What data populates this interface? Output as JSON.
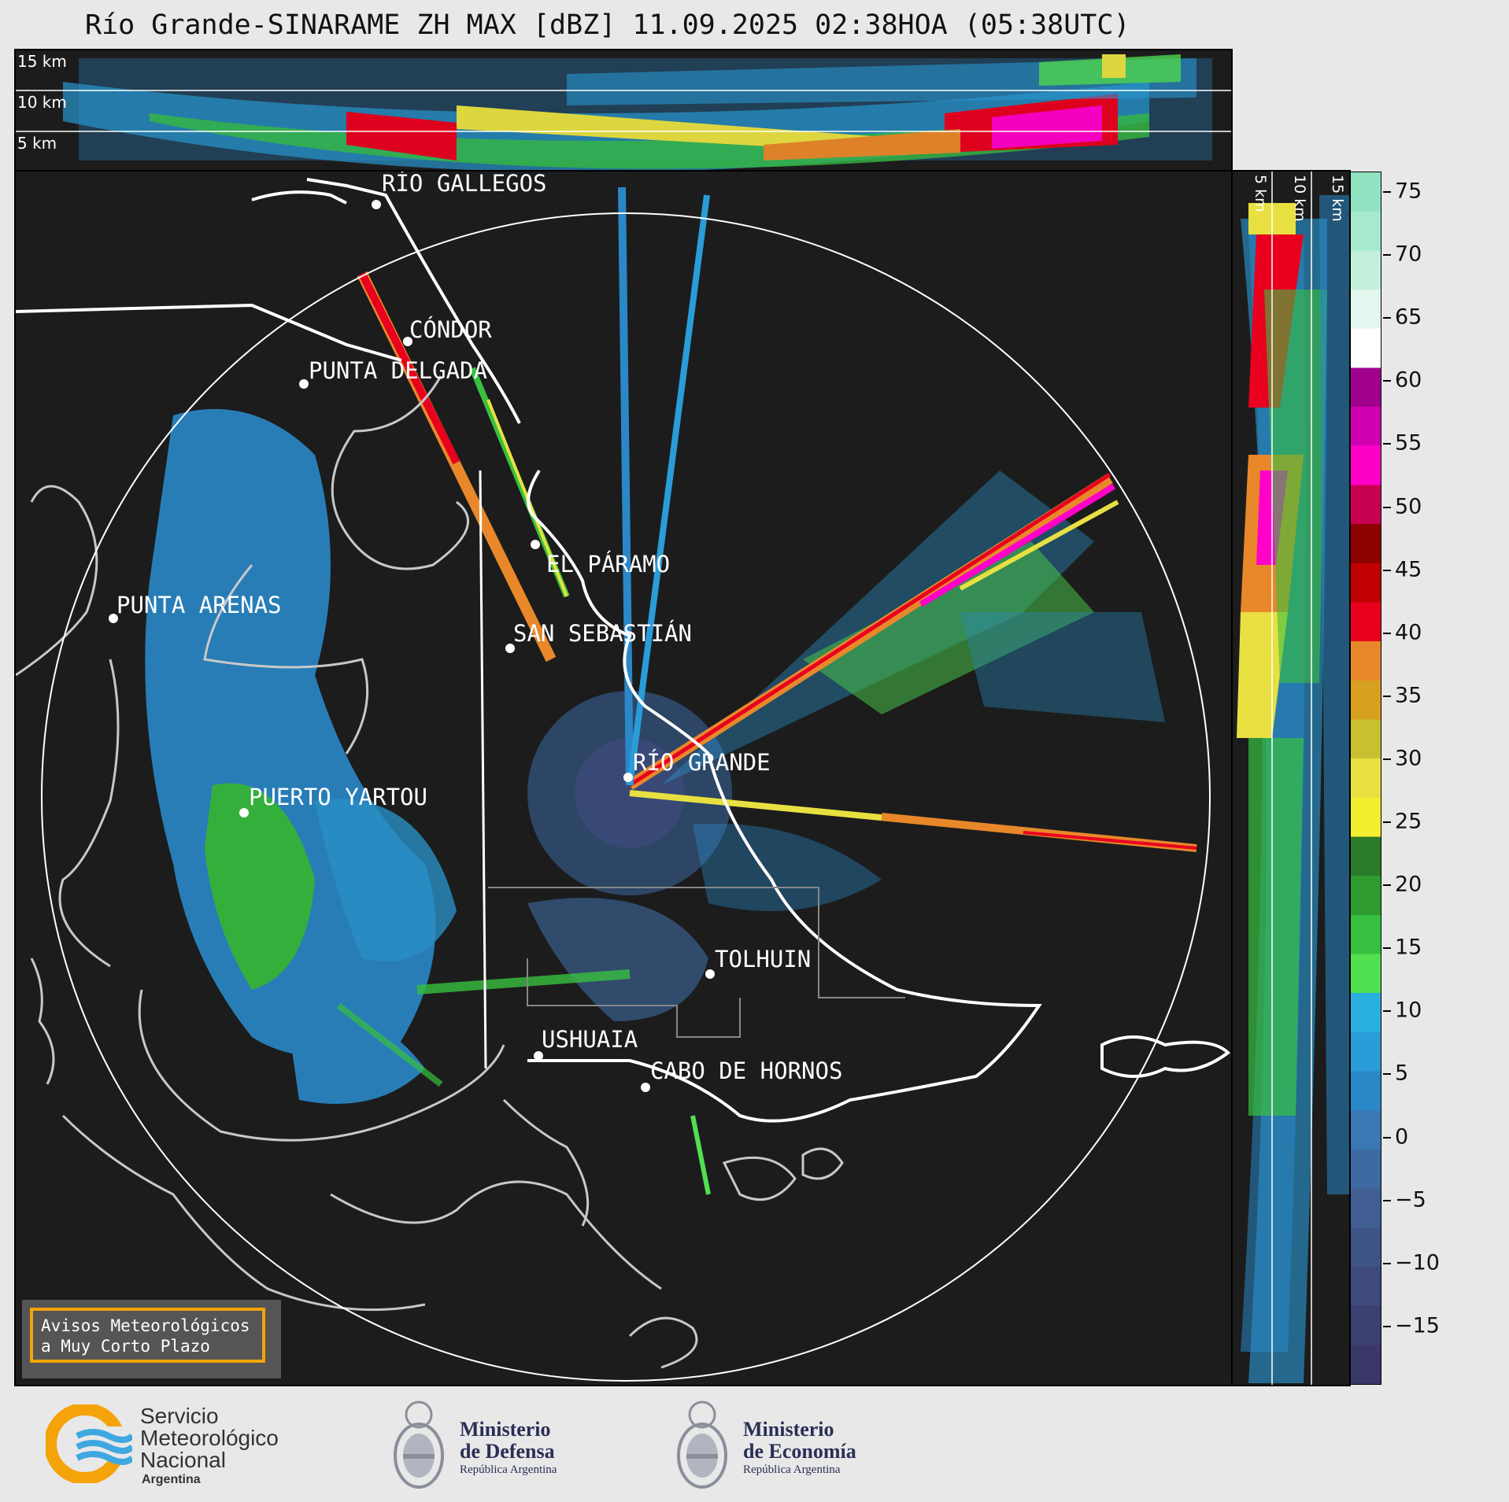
{
  "title": "Río Grande-SINARAME ZH MAX [dBZ] 11.09.2025 02:38HOA (05:38UTC)",
  "cities": [
    {
      "id": "rio-gallegos",
      "label": "RÍO GALLEGOS"
    },
    {
      "id": "condor",
      "label": "CÓNDOR"
    },
    {
      "id": "punta-delgada",
      "label": "PUNTA DELGADA"
    },
    {
      "id": "el-paramo",
      "label": "EL PÁRAMO"
    },
    {
      "id": "san-sebastian",
      "label": "SAN SEBASTIÁN"
    },
    {
      "id": "punta-arenas",
      "label": "PUNTA ARENAS"
    },
    {
      "id": "rio-grande",
      "label": "RÍO GRANDE"
    },
    {
      "id": "puerto-yartou",
      "label": "PUERTO YARTOU"
    },
    {
      "id": "tolhuin",
      "label": "TOLHUIN"
    },
    {
      "id": "ushuaia",
      "label": "USHUAIA"
    },
    {
      "id": "cabo-de-hornos",
      "label": "CABO DE HORNOS"
    }
  ],
  "top_altitudes": [
    "15 km",
    "10 km",
    "5 km"
  ],
  "side_altitudes": [
    "5 km",
    "10 km",
    "15 km"
  ],
  "colorbar": {
    "unit": "dBZ",
    "ticks": [
      "75",
      "70",
      "65",
      "60",
      "55",
      "50",
      "45",
      "40",
      "35",
      "30",
      "25",
      "20",
      "15",
      "10",
      "5",
      "0",
      "−5",
      "−10",
      "−15"
    ],
    "colors": [
      "#8fe3c0",
      "#a6eacd",
      "#c2f0dc",
      "#e2f7ee",
      "#ffffff",
      "#a0008c",
      "#d000b0",
      "#ff00c8",
      "#c80050",
      "#8c0000",
      "#c00000",
      "#e8001e",
      "#e8882a",
      "#d8a020",
      "#c8c030",
      "#e8e040",
      "#f2ee30",
      "#2a7a2a",
      "#2f9a2f",
      "#38c040",
      "#50e050",
      "#2ab0e0",
      "#2a9cd8",
      "#2a88c8",
      "#3a78b4",
      "#3d6aa2",
      "#405e92",
      "#3f5486",
      "#3e4a7c",
      "#3c4070",
      "#3a3868"
    ]
  },
  "warning": {
    "line1": "Avisos Meteorológicos",
    "line2": "a Muy Corto Plazo"
  },
  "logos": {
    "smn": {
      "line1": "Servicio",
      "line2": "Meteorológico",
      "line3": "Nacional",
      "line4": "Argentina"
    },
    "defensa": {
      "line1": "Ministerio",
      "line2": "de Defensa",
      "line3": "República Argentina"
    },
    "economia": {
      "line1": "Ministerio",
      "line2": "de Economía",
      "line3": "República Argentina"
    }
  }
}
